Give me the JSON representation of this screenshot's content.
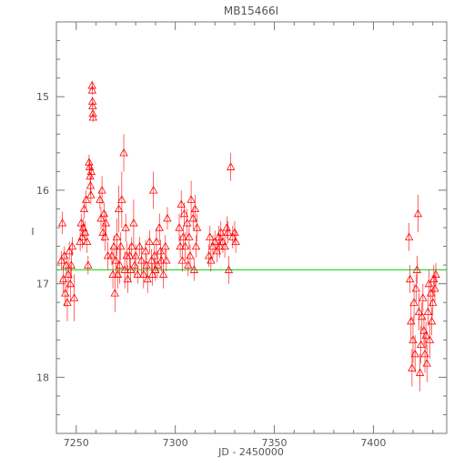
{
  "chart_data": {
    "type": "scatter",
    "title": "MB15466I",
    "xlabel": "JD - 2450000",
    "ylabel": "I",
    "xlim": [
      7240,
      7437
    ],
    "ylim": [
      18.6,
      14.2
    ],
    "y_inverted": true,
    "x_ticks": [
      7250,
      7300,
      7350,
      7400
    ],
    "y_ticks": [
      15,
      16,
      17,
      18
    ],
    "grid": false,
    "marker": "open-triangle-with-errorbar",
    "colors": {
      "points": "#ff0000",
      "reference_line": "#00cc00",
      "axes": "#777777"
    },
    "reference_line": {
      "y": 16.85,
      "x_range": [
        7240,
        7437
      ]
    },
    "series": [
      {
        "points": [
          [
            7242.5,
            16.75,
            0.1
          ],
          [
            7243.0,
            16.35,
            0.12
          ],
          [
            7243.5,
            16.95,
            0.15
          ],
          [
            7244.0,
            16.7,
            0.1
          ],
          [
            7244.5,
            17.1,
            0.15
          ],
          [
            7245.0,
            16.8,
            0.12
          ],
          [
            7245.5,
            17.2,
            0.2
          ],
          [
            7246.0,
            16.9,
            0.15
          ],
          [
            7246.5,
            16.65,
            0.1
          ],
          [
            7247.0,
            17.0,
            0.2
          ],
          [
            7247.5,
            16.8,
            0.15
          ],
          [
            7248.0,
            16.6,
            0.1
          ],
          [
            7249.0,
            17.15,
            0.25
          ],
          [
            7252.0,
            16.55,
            0.1
          ],
          [
            7252.5,
            16.35,
            0.1
          ],
          [
            7253.0,
            16.5,
            0.12
          ],
          [
            7253.5,
            16.4,
            0.1
          ],
          [
            7254.0,
            16.2,
            0.1
          ],
          [
            7254.5,
            16.45,
            0.12
          ],
          [
            7255.0,
            16.1,
            0.1
          ],
          [
            7255.5,
            16.55,
            0.12
          ],
          [
            7256.0,
            16.8,
            0.1
          ],
          [
            7256.5,
            15.7,
            0.08
          ],
          [
            7256.8,
            15.75,
            0.08
          ],
          [
            7257.0,
            15.85,
            0.1
          ],
          [
            7257.2,
            15.95,
            0.1
          ],
          [
            7257.4,
            16.05,
            0.1
          ],
          [
            7257.6,
            15.8,
            0.08
          ],
          [
            7258.0,
            14.88,
            0.05
          ],
          [
            7258.1,
            14.93,
            0.05
          ],
          [
            7258.2,
            15.05,
            0.05
          ],
          [
            7258.3,
            15.1,
            0.05
          ],
          [
            7258.4,
            15.18,
            0.05
          ],
          [
            7258.5,
            15.22,
            0.05
          ],
          [
            7262.0,
            16.1,
            0.1
          ],
          [
            7262.5,
            16.3,
            0.12
          ],
          [
            7263.0,
            16.0,
            0.15
          ],
          [
            7263.5,
            16.45,
            0.1
          ],
          [
            7264.0,
            16.25,
            0.12
          ],
          [
            7264.5,
            16.5,
            0.15
          ],
          [
            7265.0,
            16.35,
            0.12
          ],
          [
            7266.0,
            16.7,
            0.15
          ],
          [
            7268.0,
            16.7,
            0.1
          ],
          [
            7268.5,
            16.9,
            0.15
          ],
          [
            7269.0,
            16.6,
            0.12
          ],
          [
            7269.5,
            17.1,
            0.2
          ],
          [
            7270.0,
            16.75,
            0.15
          ],
          [
            7270.5,
            16.5,
            0.2
          ],
          [
            7271.0,
            16.9,
            0.15
          ],
          [
            7271.5,
            16.2,
            0.25
          ],
          [
            7272.0,
            16.8,
            0.2
          ],
          [
            7272.5,
            16.6,
            0.15
          ],
          [
            7273.0,
            16.1,
            0.3
          ],
          [
            7274.0,
            15.6,
            0.2
          ],
          [
            7274.5,
            16.85,
            0.2
          ],
          [
            7275.0,
            16.4,
            0.15
          ],
          [
            7275.5,
            16.7,
            0.15
          ],
          [
            7276.0,
            16.95,
            0.15
          ],
          [
            7277.0,
            16.7,
            0.12
          ],
          [
            7277.5,
            16.85,
            0.12
          ],
          [
            7278.0,
            16.6,
            0.1
          ],
          [
            7279.0,
            16.35,
            0.25
          ],
          [
            7279.5,
            16.8,
            0.12
          ],
          [
            7280.0,
            16.7,
            0.12
          ],
          [
            7281.0,
            16.9,
            0.1
          ],
          [
            7282.0,
            16.6,
            0.1
          ],
          [
            7283.0,
            16.75,
            0.15
          ],
          [
            7284.0,
            16.9,
            0.15
          ],
          [
            7285.0,
            16.65,
            0.12
          ],
          [
            7285.5,
            16.8,
            0.12
          ],
          [
            7286.0,
            16.95,
            0.15
          ],
          [
            7287.0,
            16.55,
            0.12
          ],
          [
            7288.0,
            16.75,
            0.12
          ],
          [
            7288.5,
            16.9,
            0.12
          ],
          [
            7289.0,
            16.0,
            0.2
          ],
          [
            7289.5,
            16.7,
            0.12
          ],
          [
            7290.0,
            16.85,
            0.12
          ],
          [
            7290.5,
            16.55,
            0.15
          ],
          [
            7291.0,
            16.8,
            0.15
          ],
          [
            7292.0,
            16.4,
            0.15
          ],
          [
            7292.5,
            16.65,
            0.12
          ],
          [
            7293.0,
            16.75,
            0.12
          ],
          [
            7294.0,
            16.9,
            0.15
          ],
          [
            7295.0,
            16.6,
            0.12
          ],
          [
            7295.5,
            16.75,
            0.12
          ],
          [
            7296.0,
            16.3,
            0.12
          ],
          [
            7302.0,
            16.4,
            0.15
          ],
          [
            7302.5,
            16.6,
            0.12
          ],
          [
            7303.0,
            16.15,
            0.15
          ],
          [
            7303.5,
            16.75,
            0.12
          ],
          [
            7304.0,
            16.5,
            0.12
          ],
          [
            7304.5,
            16.25,
            0.12
          ],
          [
            7305.0,
            16.6,
            0.15
          ],
          [
            7306.0,
            16.35,
            0.15
          ],
          [
            7306.5,
            16.8,
            0.12
          ],
          [
            7307.0,
            16.5,
            0.12
          ],
          [
            7307.5,
            16.7,
            0.12
          ],
          [
            7308.0,
            16.1,
            0.2
          ],
          [
            7309.0,
            16.3,
            0.12
          ],
          [
            7309.5,
            16.85,
            0.12
          ],
          [
            7310.0,
            16.2,
            0.15
          ],
          [
            7310.5,
            16.6,
            0.12
          ],
          [
            7311.0,
            16.4,
            0.15
          ],
          [
            7317.0,
            16.7,
            0.12
          ],
          [
            7317.5,
            16.5,
            0.12
          ],
          [
            7318.0,
            16.75,
            0.12
          ],
          [
            7319.0,
            16.6,
            0.12
          ],
          [
            7320.0,
            16.55,
            0.12
          ],
          [
            7321.0,
            16.65,
            0.12
          ],
          [
            7322.0,
            16.5,
            0.12
          ],
          [
            7322.5,
            16.6,
            0.12
          ],
          [
            7323.0,
            16.45,
            0.12
          ],
          [
            7324.0,
            16.55,
            0.12
          ],
          [
            7325.0,
            16.6,
            0.12
          ],
          [
            7326.0,
            16.4,
            0.12
          ],
          [
            7326.5,
            16.45,
            0.12
          ],
          [
            7327.0,
            16.85,
            0.15
          ],
          [
            7328.0,
            15.75,
            0.15
          ],
          [
            7329.0,
            16.5,
            0.12
          ],
          [
            7330.0,
            16.45,
            0.12
          ],
          [
            7330.5,
            16.55,
            0.12
          ],
          [
            7418.0,
            16.5,
            0.15
          ],
          [
            7418.5,
            16.95,
            0.15
          ],
          [
            7419.0,
            17.4,
            0.2
          ],
          [
            7419.5,
            17.9,
            0.2
          ],
          [
            7420.0,
            17.6,
            0.25
          ],
          [
            7420.5,
            17.2,
            0.2
          ],
          [
            7421.0,
            17.75,
            0.2
          ],
          [
            7421.5,
            17.05,
            0.15
          ],
          [
            7422.0,
            16.85,
            0.15
          ],
          [
            7422.5,
            16.25,
            0.2
          ],
          [
            7423.0,
            17.3,
            0.2
          ],
          [
            7423.5,
            17.95,
            0.2
          ],
          [
            7424.0,
            17.65,
            0.2
          ],
          [
            7424.5,
            17.35,
            0.15
          ],
          [
            7425.0,
            17.15,
            0.15
          ],
          [
            7425.5,
            17.5,
            0.15
          ],
          [
            7426.0,
            17.75,
            0.2
          ],
          [
            7426.5,
            17.55,
            0.15
          ],
          [
            7427.0,
            17.85,
            0.2
          ],
          [
            7427.5,
            17.3,
            0.15
          ],
          [
            7428.0,
            17.0,
            0.15
          ],
          [
            7428.5,
            17.6,
            0.2
          ],
          [
            7429.0,
            17.1,
            0.15
          ],
          [
            7429.5,
            17.4,
            0.15
          ],
          [
            7430.0,
            17.2,
            0.15
          ],
          [
            7430.5,
            16.95,
            0.15
          ],
          [
            7431.0,
            17.05,
            0.15
          ],
          [
            7431.5,
            16.9,
            0.12
          ]
        ]
      }
    ]
  }
}
